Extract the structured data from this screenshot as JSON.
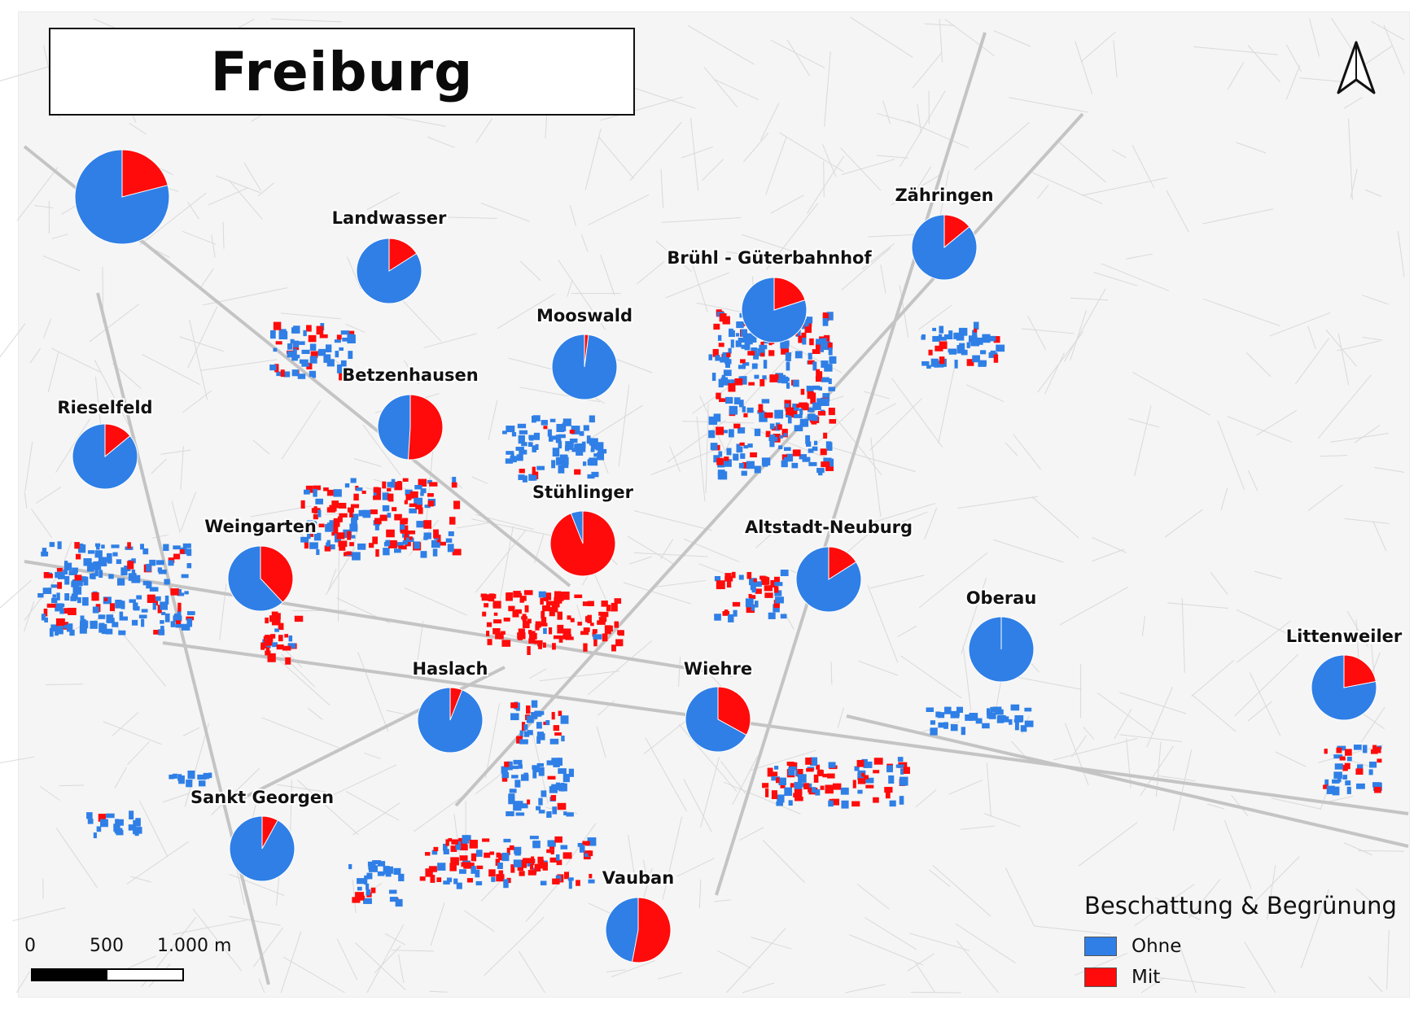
{
  "title": "Freiburg",
  "colors": {
    "ohne": "#2f7fe6",
    "mit": "#ff0b0b",
    "streets": "#cfcfcf",
    "background": "#f5f5f5"
  },
  "legend": {
    "title": "Beschattung & Begrünung",
    "items": [
      {
        "label": "Ohne",
        "color": "#2f7fe6"
      },
      {
        "label": "Mit",
        "color": "#ff0b0b"
      }
    ]
  },
  "scalebar": {
    "labels": [
      "0",
      "500",
      "1.000 m"
    ]
  },
  "north_arrow": {
    "icon": "north-arrow-icon"
  },
  "districts": [
    {
      "name": "",
      "mit": 0.21
    },
    {
      "name": "Landwasser",
      "mit": 0.16
    },
    {
      "name": "Rieselfeld",
      "mit": 0.14
    },
    {
      "name": "Betzenhausen",
      "mit": 0.51
    },
    {
      "name": "Mooswald",
      "mit": 0.02
    },
    {
      "name": "Brühl - Güterbahnhof",
      "mit": 0.2
    },
    {
      "name": "Zähringen",
      "mit": 0.14
    },
    {
      "name": "Stühlinger",
      "mit": 0.94
    },
    {
      "name": "Weingarten",
      "mit": 0.38
    },
    {
      "name": "Altstadt-Neuburg",
      "mit": 0.16
    },
    {
      "name": "Oberau",
      "mit": 0.0
    },
    {
      "name": "Littenweiler",
      "mit": 0.22
    },
    {
      "name": "Haslach",
      "mit": 0.06
    },
    {
      "name": "Wiehre",
      "mit": 0.33
    },
    {
      "name": "Sankt Georgen",
      "mit": 0.08
    },
    {
      "name": "Vauban",
      "mit": 0.53
    }
  ]
}
